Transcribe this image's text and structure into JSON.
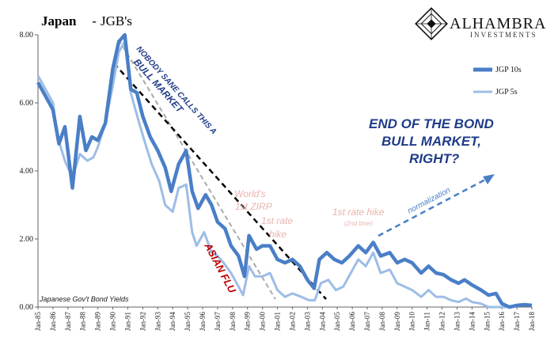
{
  "header": {
    "title_main": "Japan",
    "title_sep": " - ",
    "title_sub": "JGB's"
  },
  "logo": {
    "name": "ALHAMBRA",
    "subtitle": "INVESTMENTS"
  },
  "colors": {
    "title_red": "#e31b1b",
    "title_blue": "#1f3c88",
    "series_10y": "#4a7fc7",
    "series_5y": "#9dbde6",
    "annotation_pink": "#e8b4ad",
    "asian_flu": "#c00000",
    "headline": "#1f3c88",
    "trend_black": "#000000",
    "trend_gray": "#aaaaaa"
  },
  "annotations": {
    "bull_line1": "NOBODY SANE CALLS THIS A",
    "bull_line2": "BULL MARKET",
    "asian_flu": "ASIAN FLU",
    "world_zirp_1": "World's",
    "world_zirp_2": "1st ZIRP",
    "rate_hike_1": "1st rate",
    "rate_hike_2": "hike",
    "hike2_main": "1st rate hike",
    "hike2_sub": "(2nd time)",
    "normalization": "normalization",
    "headline_1": "END OF THE BOND",
    "headline_2": "BULL MARKET,",
    "headline_3": "RIGHT?",
    "source": "Japanese Gov't Bond Yields"
  },
  "chart_data": {
    "type": "line",
    "xlabel": "",
    "ylabel": "",
    "ylim": [
      0,
      8
    ],
    "yticks": [
      "0.00",
      "2.00",
      "4.00",
      "6.00",
      "8.00"
    ],
    "xticks": [
      "Jan-85",
      "Jan-86",
      "Jan-87",
      "Jan-88",
      "Jan-89",
      "Jan-90",
      "Jan-91",
      "Jan-92",
      "Jan-93",
      "Jan-94",
      "Jan-95",
      "Jan-96",
      "Jan-97",
      "Jan-98",
      "Jan-99",
      "Jan-00",
      "Jan-01",
      "Jan-02",
      "Jan-03",
      "Jan-04",
      "Jan-05",
      "Jan-06",
      "Jan-07",
      "Jan-08",
      "Jan-09",
      "Jan-10",
      "Jan-11",
      "Jan-12",
      "Jan-13",
      "Jan-14",
      "Jan-15",
      "Jan-16",
      "Jan-17",
      "Jan-18"
    ],
    "grid": false,
    "legend": "top-right",
    "series": [
      {
        "name": "JGP 10s",
        "points": [
          [
            1985.0,
            6.6
          ],
          [
            1985.5,
            6.2
          ],
          [
            1986.0,
            5.8
          ],
          [
            1986.4,
            4.8
          ],
          [
            1986.8,
            5.3
          ],
          [
            1987.3,
            3.5
          ],
          [
            1987.8,
            5.6
          ],
          [
            1988.2,
            4.6
          ],
          [
            1988.6,
            5.0
          ],
          [
            1989.0,
            4.9
          ],
          [
            1989.5,
            5.4
          ],
          [
            1990.0,
            7.0
          ],
          [
            1990.4,
            7.8
          ],
          [
            1990.8,
            8.0
          ],
          [
            1991.2,
            6.4
          ],
          [
            1991.6,
            6.3
          ],
          [
            1992.0,
            5.6
          ],
          [
            1992.5,
            5.0
          ],
          [
            1993.0,
            4.6
          ],
          [
            1993.5,
            4.1
          ],
          [
            1993.9,
            3.4
          ],
          [
            1994.4,
            4.2
          ],
          [
            1994.9,
            4.6
          ],
          [
            1995.3,
            3.4
          ],
          [
            1995.7,
            2.9
          ],
          [
            1996.2,
            3.3
          ],
          [
            1996.6,
            3.0
          ],
          [
            1997.0,
            2.5
          ],
          [
            1997.5,
            2.3
          ],
          [
            1997.9,
            1.8
          ],
          [
            1998.4,
            1.5
          ],
          [
            1998.8,
            0.9
          ],
          [
            1999.1,
            2.1
          ],
          [
            1999.6,
            1.7
          ],
          [
            2000.0,
            1.8
          ],
          [
            2000.5,
            1.8
          ],
          [
            2001.0,
            1.4
          ],
          [
            2001.5,
            1.3
          ],
          [
            2002.0,
            1.4
          ],
          [
            2002.5,
            1.2
          ],
          [
            2003.0,
            0.8
          ],
          [
            2003.45,
            0.55
          ],
          [
            2003.8,
            1.4
          ],
          [
            2004.3,
            1.6
          ],
          [
            2004.8,
            1.4
          ],
          [
            2005.3,
            1.3
          ],
          [
            2005.8,
            1.5
          ],
          [
            2006.4,
            1.8
          ],
          [
            2006.9,
            1.6
          ],
          [
            2007.4,
            1.9
          ],
          [
            2007.9,
            1.5
          ],
          [
            2008.5,
            1.6
          ],
          [
            2009.0,
            1.3
          ],
          [
            2009.5,
            1.4
          ],
          [
            2010.0,
            1.3
          ],
          [
            2010.6,
            1.0
          ],
          [
            2011.1,
            1.2
          ],
          [
            2011.6,
            1.0
          ],
          [
            2012.1,
            0.95
          ],
          [
            2012.6,
            0.8
          ],
          [
            2013.1,
            0.7
          ],
          [
            2013.5,
            0.8
          ],
          [
            2014.0,
            0.65
          ],
          [
            2014.6,
            0.5
          ],
          [
            2015.1,
            0.35
          ],
          [
            2015.6,
            0.4
          ],
          [
            2016.0,
            0.1
          ],
          [
            2016.5,
            -0.2
          ],
          [
            2017.0,
            0.05
          ],
          [
            2017.5,
            0.07
          ],
          [
            2018.0,
            0.05
          ]
        ]
      },
      {
        "name": "JGP 5s",
        "points": [
          [
            1985.0,
            6.8
          ],
          [
            1985.5,
            6.4
          ],
          [
            1986.0,
            6.0
          ],
          [
            1986.3,
            5.0
          ],
          [
            1986.8,
            4.3
          ],
          [
            1987.3,
            3.8
          ],
          [
            1987.8,
            4.5
          ],
          [
            1988.3,
            4.3
          ],
          [
            1988.7,
            4.4
          ],
          [
            1989.0,
            4.7
          ],
          [
            1989.5,
            5.4
          ],
          [
            1990.0,
            6.5
          ],
          [
            1990.4,
            7.5
          ],
          [
            1990.8,
            7.8
          ],
          [
            1991.2,
            6.3
          ],
          [
            1991.7,
            5.5
          ],
          [
            1992.1,
            4.9
          ],
          [
            1992.6,
            4.2
          ],
          [
            1993.1,
            3.7
          ],
          [
            1993.5,
            3.0
          ],
          [
            1994.0,
            2.8
          ],
          [
            1994.4,
            3.5
          ],
          [
            1994.9,
            3.6
          ],
          [
            1995.3,
            2.2
          ],
          [
            1995.6,
            1.8
          ],
          [
            1996.1,
            2.2
          ],
          [
            1996.6,
            1.6
          ],
          [
            1997.0,
            1.5
          ],
          [
            1997.4,
            1.3
          ],
          [
            1997.9,
            1.0
          ],
          [
            1998.4,
            0.6
          ],
          [
            1998.7,
            0.35
          ],
          [
            1999.1,
            1.2
          ],
          [
            1999.5,
            0.9
          ],
          [
            2000.0,
            0.9
          ],
          [
            2000.5,
            1.0
          ],
          [
            2001.0,
            0.5
          ],
          [
            2001.5,
            0.3
          ],
          [
            2002.0,
            0.4
          ],
          [
            2002.6,
            0.3
          ],
          [
            2003.1,
            0.2
          ],
          [
            2003.5,
            0.2
          ],
          [
            2003.9,
            0.7
          ],
          [
            2004.4,
            0.8
          ],
          [
            2004.9,
            0.5
          ],
          [
            2005.4,
            0.6
          ],
          [
            2005.9,
            1.0
          ],
          [
            2006.4,
            1.4
          ],
          [
            2006.9,
            1.2
          ],
          [
            2007.4,
            1.6
          ],
          [
            2007.9,
            1.0
          ],
          [
            2008.5,
            1.1
          ],
          [
            2009.0,
            0.7
          ],
          [
            2009.5,
            0.6
          ],
          [
            2010.0,
            0.5
          ],
          [
            2010.6,
            0.3
          ],
          [
            2011.1,
            0.5
          ],
          [
            2011.6,
            0.3
          ],
          [
            2012.1,
            0.3
          ],
          [
            2012.6,
            0.2
          ],
          [
            2013.1,
            0.15
          ],
          [
            2013.6,
            0.25
          ],
          [
            2014.0,
            0.15
          ],
          [
            2014.6,
            0.1
          ],
          [
            2015.1,
            0.0
          ],
          [
            2015.6,
            0.0
          ],
          [
            2016.0,
            -0.1
          ],
          [
            2016.4,
            -0.2
          ]
        ]
      }
    ]
  }
}
